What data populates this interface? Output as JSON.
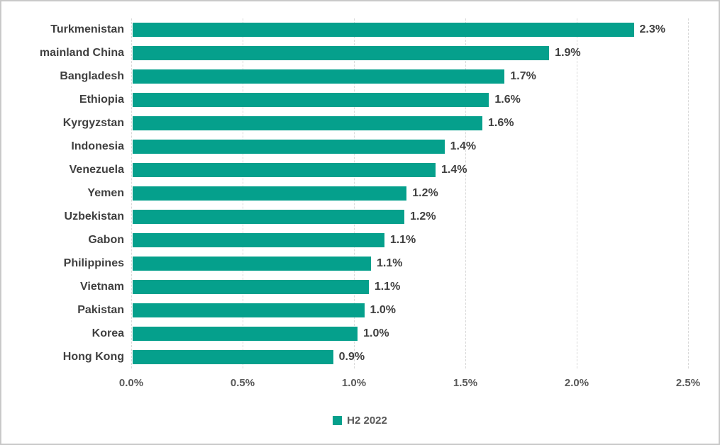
{
  "chart_data": {
    "type": "bar",
    "orientation": "horizontal",
    "title": "",
    "categories": [
      "Turkmenistan",
      "mainland China",
      "Bangladesh",
      "Ethiopia",
      "Kyrgyzstan",
      "Indonesia",
      "Venezuela",
      "Yemen",
      "Uzbekistan",
      "Gabon",
      "Philippines",
      "Vietnam",
      "Pakistan",
      "Korea",
      "Hong Kong"
    ],
    "values": [
      2.25,
      1.87,
      1.67,
      1.6,
      1.57,
      1.4,
      1.36,
      1.23,
      1.22,
      1.13,
      1.07,
      1.06,
      1.04,
      1.01,
      0.9
    ],
    "data_labels": [
      "2.3%",
      "1.9%",
      "1.7%",
      "1.6%",
      "1.6%",
      "1.4%",
      "1.4%",
      "1.2%",
      "1.2%",
      "1.1%",
      "1.1%",
      "1.1%",
      "1.0%",
      "1.0%",
      "0.9%"
    ],
    "x_ticks": [
      "0.0%",
      "0.5%",
      "1.0%",
      "1.5%",
      "2.0%",
      "2.5%"
    ],
    "xlim": [
      0,
      2.5
    ],
    "grid": "vertical-dashed",
    "legend": {
      "label": "H2 2022",
      "position": "bottom-center"
    },
    "colors": {
      "bar": "#05A08C",
      "category_text": "#404040",
      "value_text": "#404040",
      "tick_text": "#595959",
      "gridline": "#D9D9D9",
      "frame_border": "#C9C9C9"
    }
  }
}
